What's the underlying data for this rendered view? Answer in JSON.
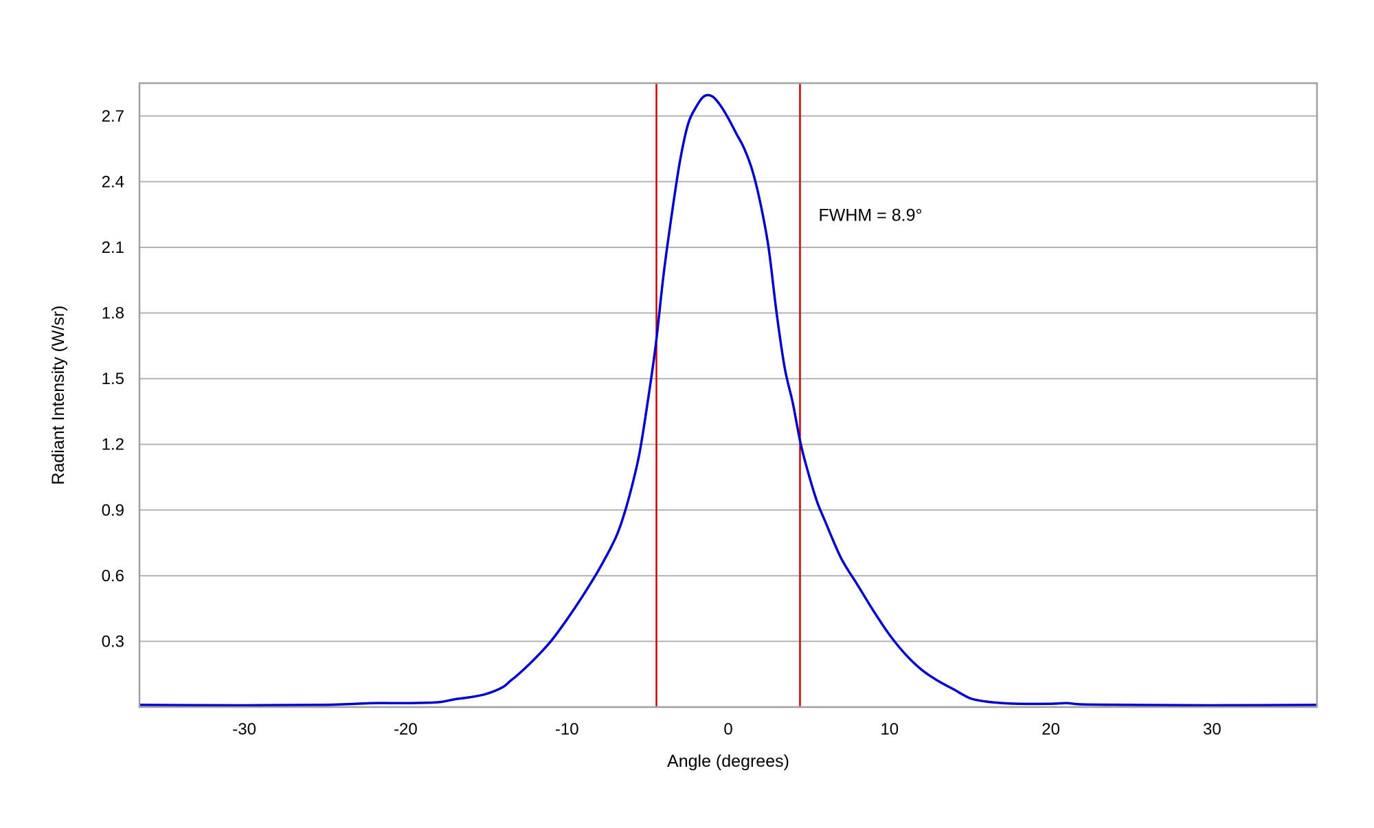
{
  "chart_data": {
    "type": "line",
    "title": "",
    "xlabel": "Angle (degrees)",
    "ylabel": "Radiant Intensity (W/sr)",
    "xlim": [
      -36.5,
      36.5
    ],
    "ylim": [
      0,
      2.85
    ],
    "xticks": [
      -30,
      -20,
      -10,
      0,
      10,
      20,
      30
    ],
    "yticks": [
      0.3,
      0.6,
      0.9,
      1.2,
      1.5,
      1.8,
      2.1,
      2.4,
      2.7
    ],
    "grid": "horizontal",
    "legend": "none",
    "series": [
      {
        "color": "#0000cc",
        "x": [
          -36.5,
          -30,
          -25,
          -22,
          -20,
          -18,
          -17,
          -16,
          -15,
          -14,
          -13.5,
          -13,
          -12,
          -11,
          -10,
          -9,
          -8,
          -7,
          -6.5,
          -6,
          -5.5,
          -5,
          -4.5,
          -4,
          -3.5,
          -3,
          -2.5,
          -2,
          -1.5,
          -1,
          -0.5,
          0,
          0.5,
          1,
          1.5,
          2,
          2.5,
          3,
          3.5,
          4,
          4.5,
          5,
          5.5,
          6,
          7,
          8,
          9,
          10,
          11,
          12,
          13,
          14,
          15,
          16,
          17,
          18,
          20,
          21,
          22,
          25,
          30,
          36.5
        ],
        "y": [
          0.01,
          0.008,
          0.01,
          0.018,
          0.018,
          0.022,
          0.035,
          0.045,
          0.06,
          0.09,
          0.12,
          0.15,
          0.22,
          0.3,
          0.4,
          0.51,
          0.63,
          0.77,
          0.87,
          1.0,
          1.16,
          1.39,
          1.65,
          1.98,
          2.25,
          2.49,
          2.66,
          2.74,
          2.79,
          2.79,
          2.75,
          2.69,
          2.62,
          2.55,
          2.45,
          2.3,
          2.1,
          1.8,
          1.55,
          1.39,
          1.2,
          1.06,
          0.94,
          0.85,
          0.68,
          0.56,
          0.44,
          0.33,
          0.24,
          0.17,
          0.12,
          0.08,
          0.04,
          0.025,
          0.018,
          0.015,
          0.015,
          0.018,
          0.012,
          0.01,
          0.008,
          0.01
        ]
      }
    ],
    "vlines": [
      {
        "x": -4.45,
        "color": "#cc0000"
      },
      {
        "x": 4.45,
        "color": "#cc0000"
      }
    ],
    "annotations": [
      {
        "text": "FWHM = 8.9°",
        "x": 5.6,
        "y": 2.22
      }
    ]
  }
}
